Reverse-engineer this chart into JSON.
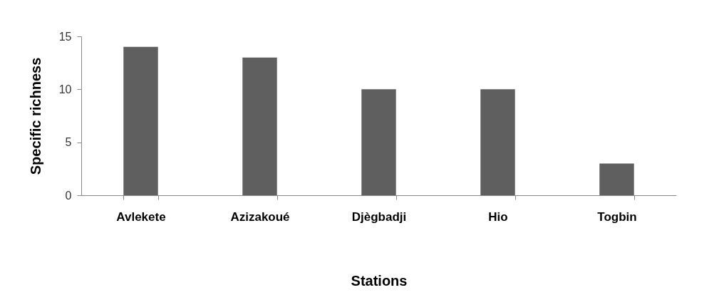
{
  "chart_data": {
    "type": "bar",
    "xlabel": "Stations",
    "ylabel": "Specific richness",
    "categories": [
      "Avlekete",
      "Azizakoué",
      "Djègbadji",
      "Hio",
      "Togbin"
    ],
    "values": [
      14,
      13,
      10,
      10,
      3
    ],
    "color": "#5f5f5f",
    "ylim": [
      0,
      15
    ],
    "yticks": [
      0,
      5,
      10,
      15
    ]
  }
}
